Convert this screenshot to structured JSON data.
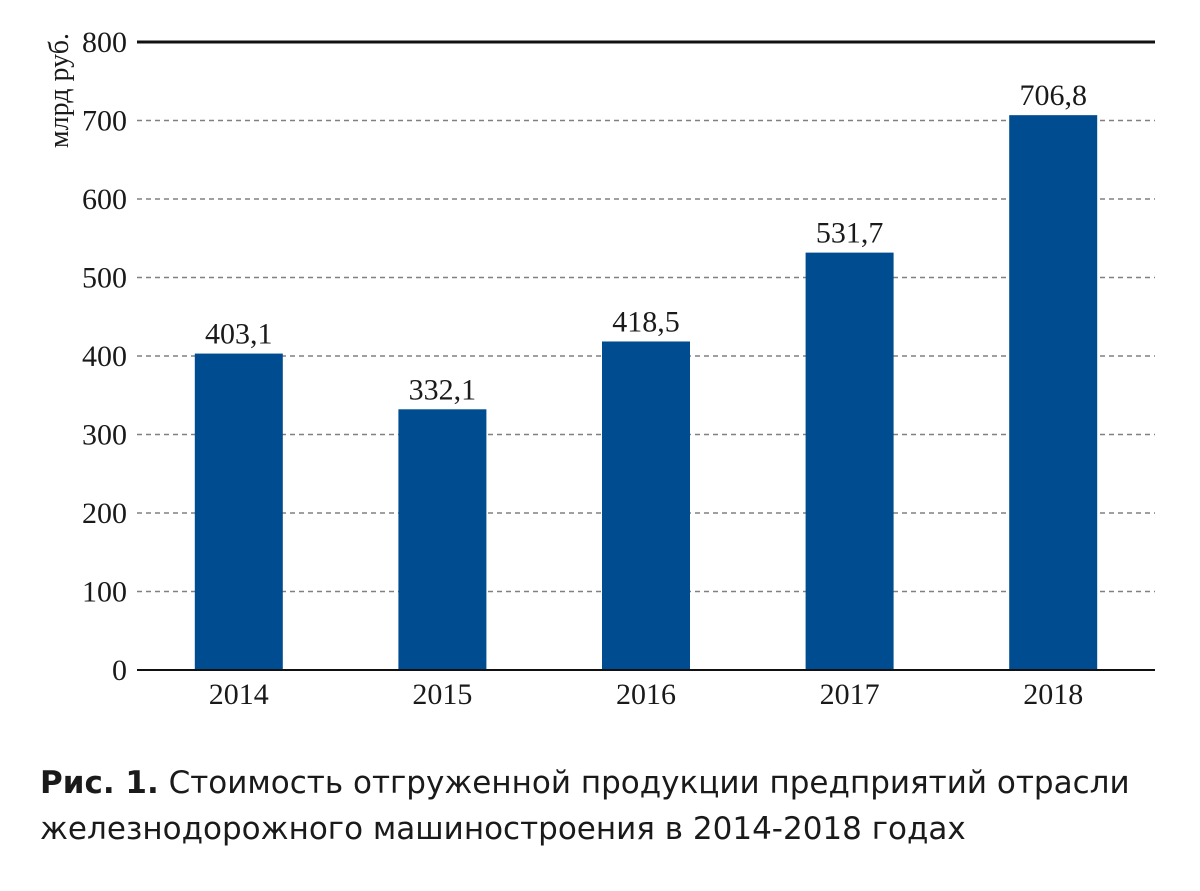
{
  "chart_data": {
    "type": "bar",
    "categories": [
      "2014",
      "2015",
      "2016",
      "2017",
      "2018"
    ],
    "values": [
      403.1,
      332.1,
      418.5,
      531.7,
      706.8
    ],
    "value_labels": [
      "403,1",
      "332,1",
      "418,5",
      "531,7",
      "706,8"
    ],
    "ylabel": "млрд руб.",
    "xlabel": "",
    "ylim": [
      0,
      800
    ],
    "yticks": [
      0,
      100,
      200,
      300,
      400,
      500,
      600,
      700,
      800
    ],
    "grid": "horizontal-dashed",
    "bar_color": "#004c91",
    "grid_color": "#808080",
    "axis_color": "#111111"
  },
  "caption": {
    "figure_number": "Рис. 1.",
    "text": " Стоимость отгруженной продукции предприятий отрасли железнодорожного машиностроения в 2014-2018 годах"
  }
}
